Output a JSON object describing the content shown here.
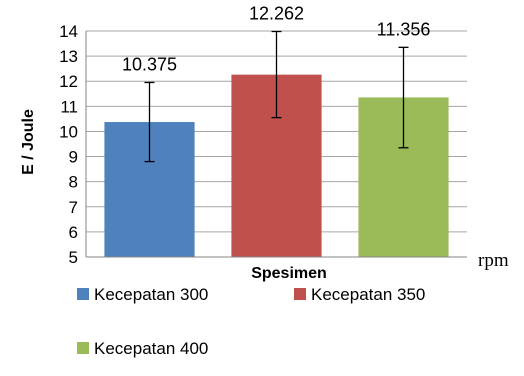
{
  "chart_data": {
    "type": "bar",
    "categories": [
      "Kecepatan 300",
      "Kecepatan 350",
      "Kecepatan 400"
    ],
    "series": [
      {
        "name": "Kecepatan 300",
        "value": 10.375,
        "value_label": "10.375",
        "error_low": 8.8,
        "error_high": 11.95,
        "color": "#4f81bd"
      },
      {
        "name": "Kecepatan 350",
        "value": 12.262,
        "value_label": "12.262",
        "error_low": 10.55,
        "error_high": 13.98,
        "color": "#c0504d"
      },
      {
        "name": "Kecepatan 400",
        "value": 11.356,
        "value_label": "11.356",
        "error_low": 9.35,
        "error_high": 13.35,
        "color": "#9bbb59"
      }
    ],
    "xlabel": "Spesimen",
    "ylabel": "E  / Joule",
    "unit_label": "rpm",
    "ylim": [
      5,
      14
    ],
    "yticks": [
      5,
      6,
      7,
      8,
      9,
      10,
      11,
      12,
      13,
      14
    ],
    "grid": true,
    "legend_position": "bottom"
  }
}
